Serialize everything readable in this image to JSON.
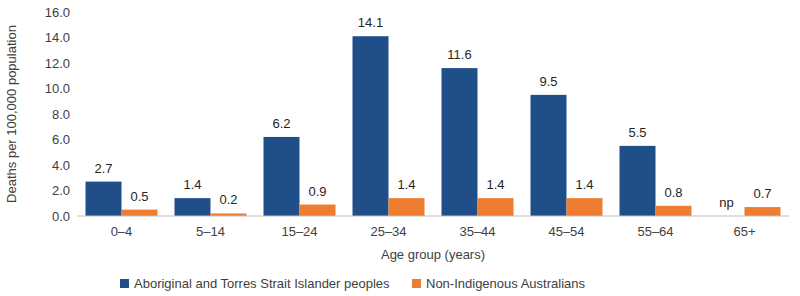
{
  "chart_data": {
    "type": "bar",
    "x_label": "Age group (years)",
    "y_label": "Deaths per 100,000 population",
    "categories": [
      "0–4",
      "5–14",
      "15–24",
      "25–34",
      "35–44",
      "45–54",
      "55–64",
      "65+"
    ],
    "series": [
      {
        "name": "Aboriginal and Torres Strait Islander peoples",
        "color": "#1F4E89",
        "values": [
          2.7,
          1.4,
          6.2,
          14.1,
          11.6,
          9.5,
          5.5,
          null
        ],
        "value_labels": [
          "2.7",
          "1.4",
          "6.2",
          "14.1",
          "11.6",
          "9.5",
          "5.5",
          "np"
        ]
      },
      {
        "name": "Non-Indigenous Australians",
        "color": "#ED7D31",
        "values": [
          0.5,
          0.2,
          0.9,
          1.4,
          1.4,
          1.4,
          0.8,
          0.7
        ]
      }
    ],
    "ylim": [
      0,
      16
    ],
    "yticks": [
      {
        "value": 0,
        "label": "0.0"
      },
      {
        "value": 2,
        "label": "2.0"
      },
      {
        "value": 4,
        "label": "4.0"
      },
      {
        "value": 6,
        "label": "6.0"
      },
      {
        "value": 8,
        "label": "8.0"
      },
      {
        "value": 10,
        "label": "10.0"
      },
      {
        "value": 12,
        "label": "12.0"
      },
      {
        "value": 14,
        "label": "14.0"
      },
      {
        "value": 16,
        "label": "16.0"
      }
    ],
    "grid": false,
    "data_labels": true,
    "legend": "bottom"
  }
}
